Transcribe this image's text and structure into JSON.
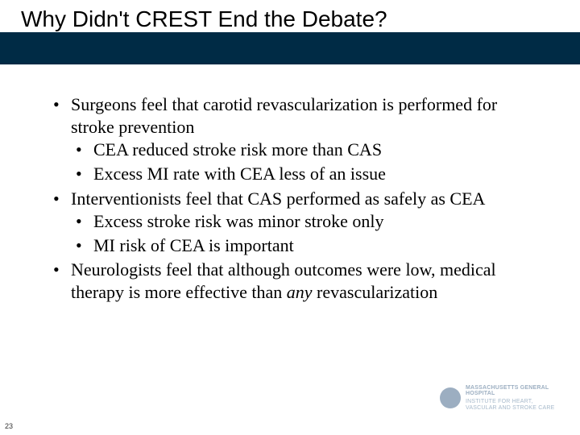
{
  "slide": {
    "title": "Why Didn't CREST End the Debate?",
    "title_fontsize": 28,
    "title_color": "#000000",
    "band_color": "#002b45",
    "content_font": "Times New Roman",
    "content_fontsize": 22,
    "bullets": [
      {
        "text": "Surgeons feel that carotid revascularization is performed for stroke prevention",
        "sub": [
          {
            "text": "CEA reduced stroke risk more than CAS"
          },
          {
            "text": "Excess MI rate with CEA less of an issue"
          }
        ]
      },
      {
        "text": "Interventionists feel that CAS performed as safely as CEA",
        "sub": [
          {
            "text": "Excess stroke risk was minor stroke only"
          },
          {
            "text": "MI risk of CEA is important"
          }
        ]
      },
      {
        "text_pre": "Neurologists feel that although outcomes were low, medical therapy is more effective than ",
        "text_ital": "any",
        "text_post": " revascularization",
        "sub": []
      }
    ],
    "page_number": "23",
    "logo": {
      "line1": "MASSACHUSETTS GENERAL HOSPITAL",
      "line2": "INSTITUTE FOR HEART, VASCULAR AND STROKE CARE",
      "seal_color": "#5b7a99",
      "text_color": "#5b7a99"
    }
  }
}
